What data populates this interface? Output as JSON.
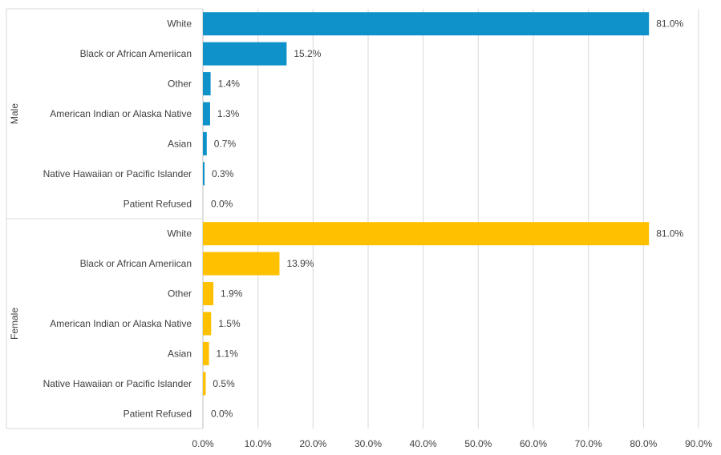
{
  "chart_data": {
    "type": "bar",
    "orientation": "horizontal",
    "xlim": [
      0,
      90
    ],
    "x_ticks": [
      0,
      10,
      20,
      30,
      40,
      50,
      60,
      70,
      80,
      90
    ],
    "x_tick_labels": [
      "0.0%",
      "10.0%",
      "20.0%",
      "30.0%",
      "40.0%",
      "50.0%",
      "60.0%",
      "70.0%",
      "80.0%",
      "90.0%"
    ],
    "grid": true,
    "groups": [
      {
        "name": "Male",
        "color": "#0E92C9",
        "categories": [
          "White",
          "Black or African Ameriican",
          "Other",
          "American Indian or Alaska Native",
          "Asian",
          "Native Hawaiian or Pacific Islander",
          "Patient Refused"
        ],
        "values": [
          81.0,
          15.2,
          1.4,
          1.3,
          0.7,
          0.3,
          0.0
        ],
        "labels": [
          "81.0%",
          "15.2%",
          "1.4%",
          "1.3%",
          "0.7%",
          "0.3%",
          "0.0%"
        ]
      },
      {
        "name": "Female",
        "color": "#FFC000",
        "categories": [
          "White",
          "Black or African Ameriican",
          "Other",
          "American Indian or Alaska Native",
          "Asian",
          "Native Hawaiian or Pacific Islander",
          "Patient Refused"
        ],
        "values": [
          81.0,
          13.9,
          1.9,
          1.5,
          1.1,
          0.5,
          0.0
        ],
        "labels": [
          "81.0%",
          "13.9%",
          "1.9%",
          "1.5%",
          "1.1%",
          "0.5%",
          "0.0%"
        ]
      }
    ]
  }
}
